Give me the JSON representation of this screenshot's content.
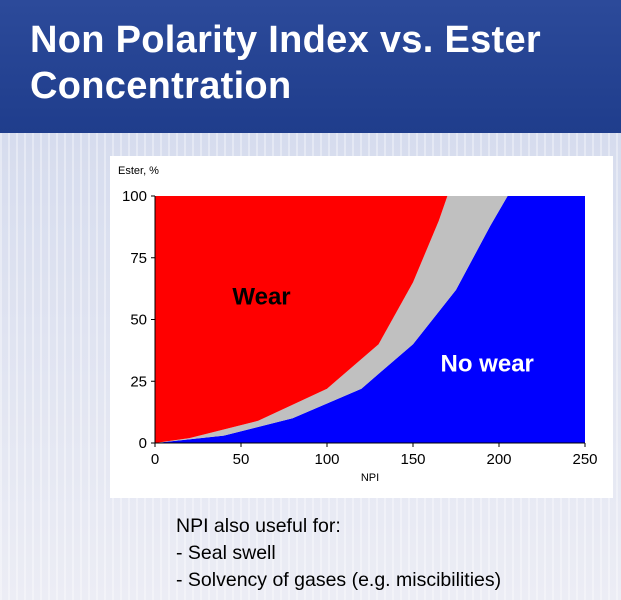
{
  "title": "Non Polarity Index vs. Ester Concentration",
  "chart_data": {
    "type": "area",
    "xlabel": "NPI",
    "ylabel": "Ester, %",
    "xlim": [
      0,
      250
    ],
    "ylim": [
      0,
      100
    ],
    "x_ticks": [
      "0",
      "50",
      "100",
      "150",
      "200",
      "250"
    ],
    "y_ticks": [
      "0",
      "25",
      "50",
      "75",
      "100"
    ],
    "grid": false,
    "legend": "none",
    "regions": [
      {
        "name": "Wear",
        "color": "#ff0000"
      },
      {
        "name": "transition",
        "color": "#c0c0c0"
      },
      {
        "name": "No wear",
        "color": "#0000ff"
      }
    ],
    "boundaries": {
      "wear_edge": [
        [
          0,
          0
        ],
        [
          20,
          2
        ],
        [
          60,
          9
        ],
        [
          100,
          22
        ],
        [
          130,
          40
        ],
        [
          150,
          65
        ],
        [
          165,
          90
        ],
        [
          170,
          100
        ]
      ],
      "no_wear_edge": [
        [
          0,
          0
        ],
        [
          40,
          3
        ],
        [
          80,
          10
        ],
        [
          120,
          22
        ],
        [
          150,
          40
        ],
        [
          175,
          62
        ],
        [
          195,
          88
        ],
        [
          205,
          100
        ]
      ]
    },
    "annotations": [
      {
        "text": "Wear",
        "color": "#000000"
      },
      {
        "text": "No wear",
        "color": "#ffffff"
      }
    ]
  },
  "notes": {
    "heading": "NPI also useful for:",
    "items": [
      "- Seal swell",
      "- Solvency of gases (e.g. miscibilities)"
    ]
  }
}
